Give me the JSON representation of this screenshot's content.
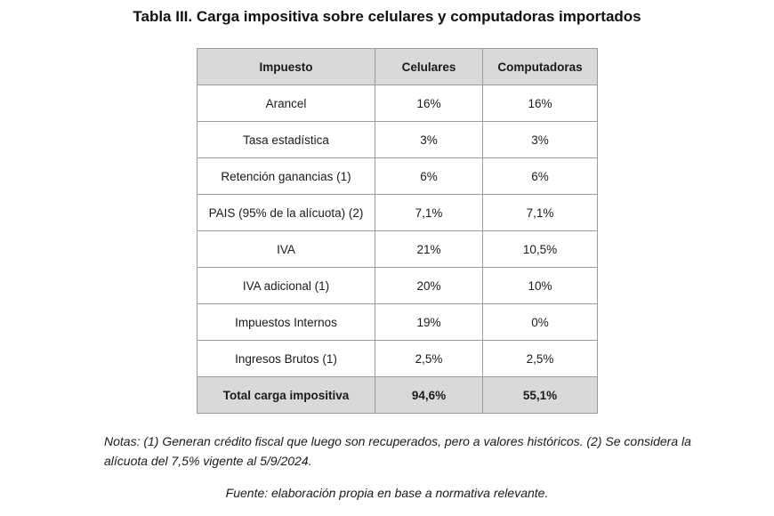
{
  "title": "Tabla III. Carga impositiva sobre celulares y computadoras importados",
  "table": {
    "headers": [
      "Impuesto",
      "Celulares",
      "Computadoras"
    ],
    "rows": [
      [
        "Arancel",
        "16%",
        "16%"
      ],
      [
        "Tasa estadística",
        "3%",
        "3%"
      ],
      [
        "Retención ganancias (1)",
        "6%",
        "6%"
      ],
      [
        "PAIS (95% de la alícuota) (2)",
        "7,1%",
        "7,1%"
      ],
      [
        "IVA",
        "21%",
        "10,5%"
      ],
      [
        "IVA adicional (1)",
        "20%",
        "10%"
      ],
      [
        "Impuestos Internos",
        "19%",
        "0%"
      ],
      [
        "Ingresos Brutos (1)",
        "2,5%",
        "2,5%"
      ]
    ],
    "total": [
      "Total carga impositiva",
      "94,6%",
      "55,1%"
    ]
  },
  "notes": "Notas: (1) Generan crédito fiscal que luego son recuperados, pero a valores históricos. (2) Se considera la alícuota del 7,5% vigente al 5/9/2024.",
  "source": "Fuente: elaboración propia en base a normativa relevante."
}
